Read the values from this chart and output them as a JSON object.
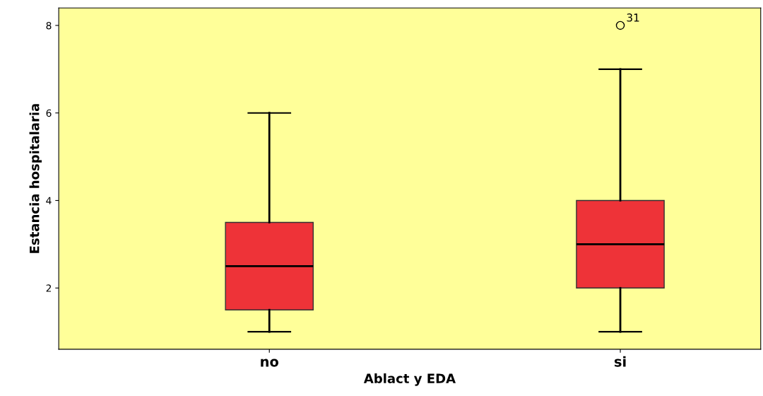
{
  "chart_data": {
    "type": "box",
    "xlabel": "Ablact y EDA",
    "ylabel": "Estancia hospitalaria",
    "categories": [
      "no",
      "si"
    ],
    "boxes": [
      {
        "low": 1,
        "q1": 1.5,
        "median": 2.5,
        "q3": 3.5,
        "high": 6
      },
      {
        "low": 1,
        "q1": 2,
        "median": 3,
        "q3": 4,
        "high": 7,
        "outliers": [
          8
        ]
      }
    ],
    "color": "#ee3338",
    "ylim": [
      0.6,
      8.4
    ],
    "yticks": [
      2,
      4,
      6,
      8
    ],
    "annotations": [
      "31"
    ],
    "grid": false
  }
}
